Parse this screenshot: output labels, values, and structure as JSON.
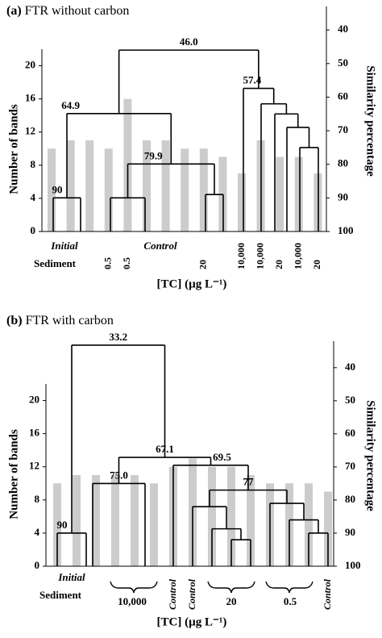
{
  "chart_data": [
    {
      "type": "bar",
      "panel": "(a)",
      "title": "FTR without carbon",
      "y_label": "Number of bands",
      "y2_label": "Similarity percentage",
      "x_label": "[TC] (µg L⁻¹)",
      "categories": [
        null,
        null,
        null,
        "0.5",
        "0.5",
        null,
        null,
        null,
        "20",
        null,
        "10,000",
        "10,000",
        "20",
        "10,000",
        "20"
      ],
      "group_labels": [
        "Initial",
        "Sediment",
        "Control"
      ],
      "values": [
        10,
        11,
        11,
        10,
        16,
        11,
        11,
        10,
        10,
        9,
        7,
        11,
        9,
        9,
        7
      ],
      "color": "#cccccc",
      "ylim": [
        0,
        22
      ],
      "yticks": [
        0,
        4,
        8,
        12,
        16,
        20
      ],
      "y2lim": [
        100,
        33
      ],
      "y2ticks": [
        40,
        50,
        60,
        70,
        80,
        90,
        100
      ],
      "dendrogram_color": "#000000",
      "dendrogram": {
        "similarity": 46,
        "label": "46.0",
        "children": [
          {
            "similarity": 64.9,
            "label": "64.9",
            "children": [
              {
                "similarity": 90,
                "label": "90",
                "children": [
                  100,
                  100
                ]
              },
              {
                "similarity": 79.9,
                "label": "79.9",
                "children": [
                  {
                    "similarity": 90,
                    "children": [
                      100,
                      100
                    ]
                  },
                  {
                    "similarity": 89,
                    "children": [
                      100,
                      100
                    ]
                  }
                ]
              }
            ]
          },
          {
            "similarity": 57.4,
            "label": "57.4",
            "children": [
              100,
              {
                "similarity": 62,
                "children": [
                  100,
                  {
                    "similarity": 65,
                    "children": [
                      100,
                      {
                        "similarity": 69,
                        "children": [
                          100,
                          {
                            "similarity": 75,
                            "children": [
                              100,
                              100
                            ]
                          }
                        ]
                      }
                    ]
                  }
                ]
              }
            ]
          }
        ]
      }
    },
    {
      "type": "bar",
      "panel": "(b)",
      "title": "FTR with carbon",
      "y_label": "Number of bands",
      "y2_label": "Similarity percentage",
      "x_label": "[TC] (µg L⁻¹)",
      "categories": [
        null,
        null,
        null,
        null,
        null,
        null,
        "Control",
        "Control",
        null,
        null,
        null,
        null,
        null,
        null,
        "Control"
      ],
      "group_labels": [
        "Initial",
        "Sediment",
        "10,000",
        "20",
        "0.5"
      ],
      "values": [
        10,
        11,
        11,
        11,
        11,
        10,
        12,
        13,
        12,
        12,
        11,
        10,
        10,
        10,
        9
      ],
      "color": "#cccccc",
      "ylim": [
        0,
        22
      ],
      "yticks": [
        0,
        4,
        8,
        12,
        16,
        20
      ],
      "y2lim": [
        100,
        32
      ],
      "y2ticks": [
        40,
        50,
        60,
        70,
        80,
        90,
        100
      ],
      "dendrogram_color": "#000000",
      "dendrogram": {
        "similarity": 33.2,
        "label": "33.2",
        "children": [
          {
            "similarity": 90,
            "label": "90",
            "children": [
              100,
              100
            ]
          },
          {
            "similarity": 67.1,
            "label": "67.1",
            "children": [
              {
                "similarity": 75,
                "label": "75.0",
                "children": [
                  100,
                  100
                ]
              },
              {
                "similarity": 69.5,
                "label": "69.5",
                "children": [
                  100,
                  {
                    "similarity": 77,
                    "label": "77",
                    "children": [
                      {
                        "similarity": 82,
                        "children": [
                          100,
                          {
                            "similarity": 88.7,
                            "children": [
                              100,
                              {
                                "similarity": 92,
                                "children": [
                                  100,
                                  100
                                ]
                              }
                            ]
                          }
                        ]
                      },
                      {
                        "similarity": 81,
                        "children": [
                          100,
                          {
                            "similarity": 86,
                            "children": [
                              100,
                              {
                                "similarity": 90,
                                "children": [
                                  100,
                                  100
                                ]
                              }
                            ]
                          }
                        ]
                      }
                    ]
                  }
                ]
              }
            ]
          }
        ]
      }
    }
  ]
}
